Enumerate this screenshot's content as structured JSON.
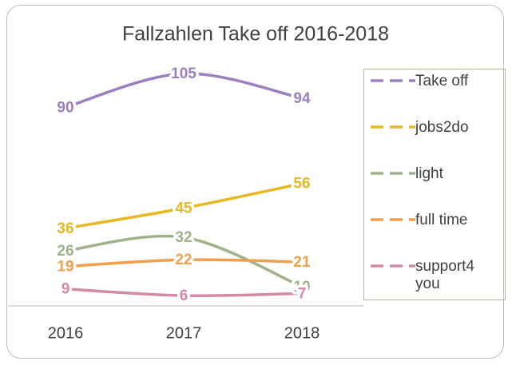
{
  "chart_data": {
    "type": "line",
    "title": "Fallzahlen Take off 2016-2018",
    "categories": [
      "2016",
      "2017",
      "2018"
    ],
    "series": [
      {
        "name": "Take off",
        "color": "#9b7fc0",
        "values": [
          90,
          105,
          94
        ]
      },
      {
        "name": "jobs2do",
        "color": "#e6b822",
        "values": [
          36,
          45,
          56
        ]
      },
      {
        "name": "light",
        "color": "#9fb38a",
        "values": [
          26,
          32,
          10
        ]
      },
      {
        "name": "full time",
        "color": "#f0a04b",
        "values": [
          19,
          22,
          21
        ]
      },
      {
        "name": "support4 you",
        "color": "#d48aa6",
        "values": [
          9,
          6,
          7
        ]
      }
    ],
    "ylim": [
      0,
      120
    ],
    "grid": false,
    "legend": "right"
  }
}
